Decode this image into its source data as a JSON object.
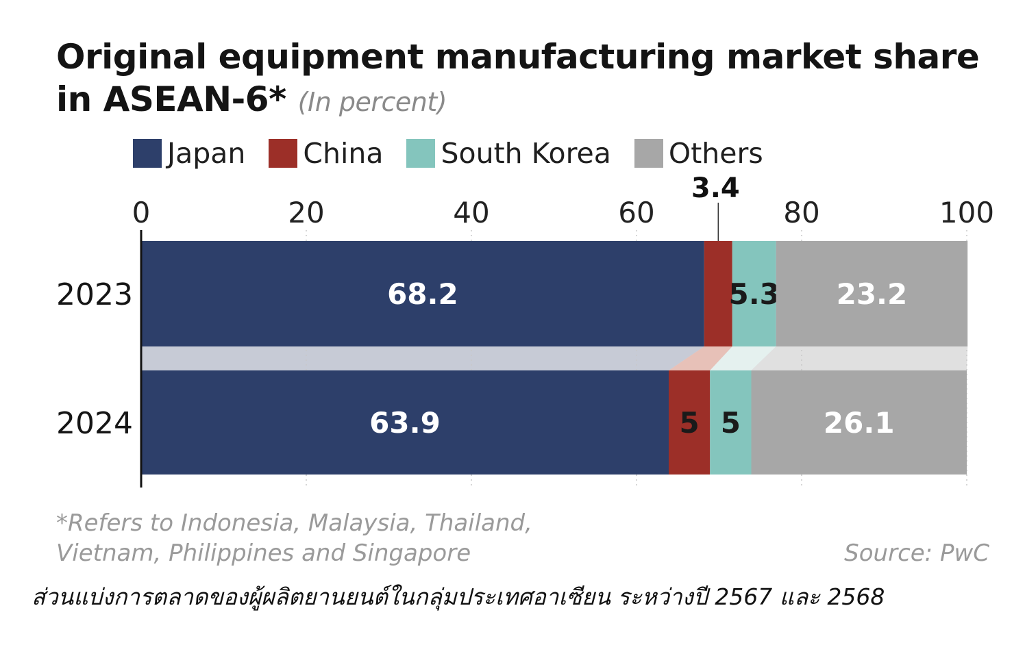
{
  "title_line1": "Original equipment manufacturing market share",
  "title_line2": "in ASEAN-6*",
  "title_unit": "(In percent)",
  "footnote_line1": "*Refers to Indonesia, Malaysia, Thailand,",
  "footnote_line2": "Vietnam, Philippines and Singapore",
  "source": "Source: PwC",
  "caption": "ส่วนแบ่งการตลาดของผู้ผลิตยานยนต์ในกลุ่มประเทศอาเซียน ระหว่างปี 2567 และ 2568",
  "colors": {
    "Japan": "#2d3f6a",
    "China": "#9c2f28",
    "South Korea": "#84c5bd",
    "Others": "#a7a7a7",
    "connector": "#d9dbe3"
  },
  "chart_data": {
    "type": "bar",
    "orientation": "horizontal",
    "stacked": true,
    "categories": [
      "2023",
      "2024"
    ],
    "series": [
      {
        "name": "Japan",
        "values": [
          68.2,
          63.9
        ],
        "labels": [
          "68.2",
          "63.9"
        ]
      },
      {
        "name": "China",
        "values": [
          3.4,
          5
        ],
        "labels": [
          "3.4",
          "5"
        ]
      },
      {
        "name": "South Korea",
        "values": [
          5.3,
          5
        ],
        "labels": [
          "5.3",
          "5"
        ]
      },
      {
        "name": "Others",
        "values": [
          23.2,
          26.1
        ],
        "labels": [
          "23.2",
          "26.1"
        ]
      }
    ],
    "xlim": [
      0,
      100
    ],
    "xticks": [
      "0",
      "20",
      "40",
      "60",
      "80",
      "100"
    ],
    "grid": true,
    "legend_position": "top-left"
  }
}
